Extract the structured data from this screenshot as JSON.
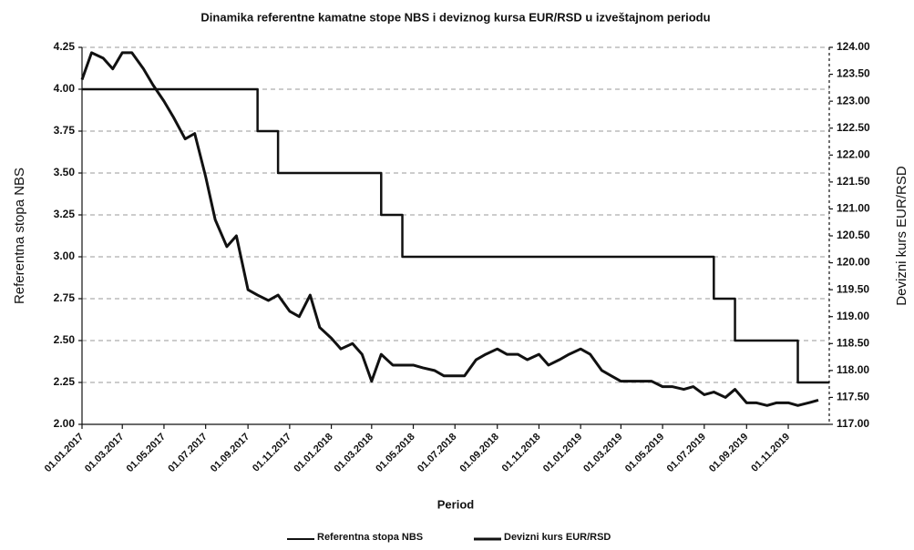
{
  "chart_data": {
    "type": "line",
    "title": "Dinamika referentne kamatne stope NBS i deviznog kursa EUR/RSD u izveštajnom periodu",
    "x_label": "Period",
    "y_label": "Referentna stopa NBS",
    "y2_label": "Devizni kurs EUR/RSD",
    "x": [
      "01.01.2017",
      "15.01.2017",
      "01.02.2017",
      "15.02.2017",
      "01.03.2017",
      "15.03.2017",
      "01.04.2017",
      "15.04.2017",
      "01.05.2017",
      "15.05.2017",
      "01.06.2017",
      "15.06.2017",
      "01.07.2017",
      "15.07.2017",
      "01.08.2017",
      "15.08.2017",
      "01.09.2017",
      "15.09.2017",
      "01.10.2017",
      "15.10.2017",
      "01.11.2017",
      "15.11.2017",
      "01.12.2017",
      "15.12.2017",
      "01.01.2018",
      "15.01.2018",
      "01.02.2018",
      "15.02.2018",
      "01.03.2018",
      "15.03.2018",
      "01.04.2018",
      "15.04.2018",
      "01.05.2018",
      "15.05.2018",
      "01.06.2018",
      "15.06.2018",
      "01.07.2018",
      "15.07.2018",
      "01.08.2018",
      "15.08.2018",
      "01.09.2018",
      "15.09.2018",
      "01.10.2018",
      "15.10.2018",
      "01.11.2018",
      "15.11.2018",
      "01.12.2018",
      "15.12.2018",
      "01.01.2019",
      "15.01.2019",
      "01.02.2019",
      "15.02.2019",
      "01.03.2019",
      "15.03.2019",
      "01.04.2019",
      "15.04.2019",
      "01.05.2019",
      "15.05.2019",
      "01.06.2019",
      "15.06.2019",
      "01.07.2019",
      "15.07.2019",
      "01.08.2019",
      "15.08.2019",
      "01.09.2019",
      "15.09.2019",
      "01.10.2019",
      "15.10.2019",
      "01.11.2019",
      "15.11.2019",
      "01.12.2019",
      "15.12.2019"
    ],
    "xlim": [
      "01.01.2017",
      "31.12.2019"
    ],
    "xticks": [
      "01.01.2017",
      "01.03.2017",
      "01.05.2017",
      "01.07.2017",
      "01.09.2017",
      "01.11.2017",
      "01.01.2018",
      "01.03.2018",
      "01.05.2018",
      "01.07.2018",
      "01.09.2018",
      "01.11.2018",
      "01.01.2019",
      "01.03.2019",
      "01.05.2019",
      "01.07.2019",
      "01.09.2019",
      "01.11.2019"
    ],
    "series": [
      {
        "name": "Referentna stopa NBS",
        "color": "#111111",
        "axis": "y",
        "step": true,
        "values": [
          4,
          4,
          4,
          4,
          4,
          4,
          4,
          4,
          4,
          4,
          4,
          4,
          4,
          4,
          4,
          4,
          4,
          3.75,
          3.75,
          3.5,
          3.5,
          3.5,
          3.5,
          3.5,
          3.5,
          3.5,
          3.5,
          3.5,
          3.5,
          3.25,
          3.25,
          3,
          3,
          3,
          3,
          3,
          3,
          3,
          3,
          3,
          3,
          3,
          3,
          3,
          3,
          3,
          3,
          3,
          3,
          3,
          3,
          3,
          3,
          3,
          3,
          3,
          3,
          3,
          3,
          3,
          3,
          2.75,
          2.75,
          2.5,
          2.5,
          2.5,
          2.5,
          2.5,
          2.5,
          2.25,
          2.25,
          2.25
        ]
      },
      {
        "name": "Devizni kurs EUR/RSD",
        "color": "#111111",
        "axis": "y2",
        "values": [
          123.4,
          123.9,
          123.8,
          123.6,
          123.9,
          123.9,
          123.6,
          123.3,
          123.0,
          122.7,
          122.3,
          122.4,
          121.6,
          120.8,
          120.3,
          120.5,
          119.5,
          119.4,
          119.3,
          119.4,
          119.1,
          119.0,
          119.4,
          118.8,
          118.6,
          118.4,
          118.5,
          118.3,
          117.8,
          118.3,
          118.1,
          118.1,
          118.1,
          118.05,
          118.0,
          117.9,
          117.9,
          117.9,
          118.2,
          118.3,
          118.4,
          118.3,
          118.3,
          118.2,
          118.3,
          118.1,
          118.2,
          118.3,
          118.4,
          118.3,
          118.0,
          117.9,
          117.8,
          117.8,
          117.8,
          117.8,
          117.7,
          117.7,
          117.65,
          117.7,
          117.55,
          117.6,
          117.5,
          117.65,
          117.4,
          117.4,
          117.35,
          117.4,
          117.4,
          117.35,
          117.4,
          117.45
        ]
      }
    ],
    "ylim": [
      2,
      4.25
    ],
    "yticks": [
      {
        "value": 2,
        "label": "2.00"
      },
      2.25,
      {
        "value": 2.5,
        "label": "2.50"
      },
      2.75,
      {
        "value": 3,
        "label": "3.00"
      },
      3.25,
      {
        "value": 3.5,
        "label": "3.50"
      },
      3.75,
      {
        "value": 4,
        "label": "4.00"
      },
      4.25
    ],
    "y2lim": [
      117,
      124
    ],
    "y2ticks": [
      {
        "value": 117,
        "label": "117.00"
      },
      {
        "value": 117.5,
        "label": "117.50"
      },
      {
        "value": 118,
        "label": "118.00"
      },
      {
        "value": 118.5,
        "label": "118.50"
      },
      {
        "value": 119,
        "label": "119.00"
      },
      {
        "value": 119.5,
        "label": "119.50"
      },
      {
        "value": 120,
        "label": "120.00"
      },
      {
        "value": 120.5,
        "label": "120.50"
      },
      {
        "value": 121,
        "label": "121.00"
      },
      {
        "value": 121.5,
        "label": "121.50"
      },
      {
        "value": 122,
        "label": "122.00"
      },
      {
        "value": 122.5,
        "label": "122.50"
      },
      {
        "value": 123,
        "label": "123.00"
      },
      {
        "value": 123.5,
        "label": "123.50"
      },
      {
        "value": 124,
        "label": "124.00"
      }
    ],
    "grid": true,
    "legend": "bottom"
  }
}
